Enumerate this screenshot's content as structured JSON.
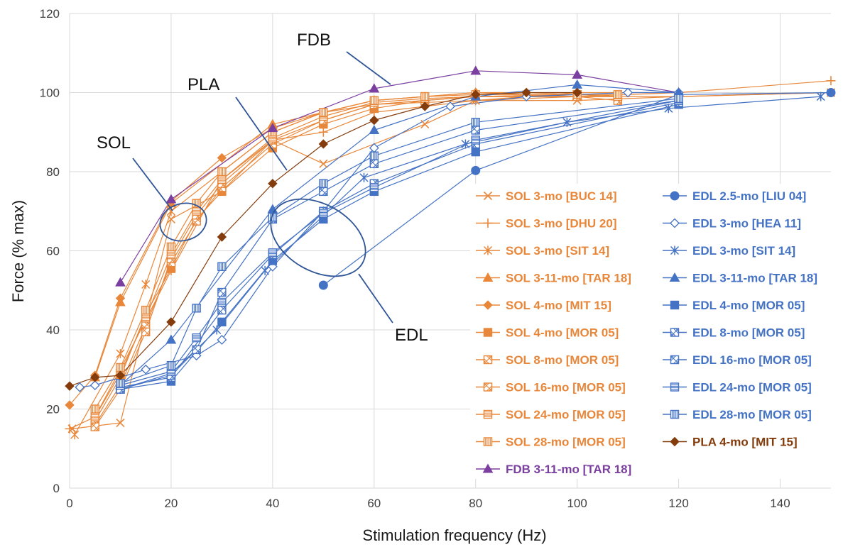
{
  "chart_data": {
    "type": "line",
    "xlabel": "Stimulation frequency (Hz)",
    "ylabel": "Force (% max)",
    "xlim": [
      0,
      150
    ],
    "ylim": [
      0,
      120
    ],
    "xticks": [
      0,
      20,
      40,
      60,
      80,
      100,
      120,
      140
    ],
    "yticks": [
      0,
      20,
      40,
      60,
      80,
      100,
      120
    ],
    "grid": true,
    "legend_position": "bottom-right",
    "annotations": [
      {
        "text": "FDB"
      },
      {
        "text": "PLA"
      },
      {
        "text": "SOL"
      },
      {
        "text": "EDL"
      }
    ],
    "series": [
      {
        "name": "SOL 3-mo [BUC 14]",
        "color": "#E8873A",
        "marker": "x",
        "points": [
          [
            0.5,
            15
          ],
          [
            10,
            16.5
          ],
          [
            20,
            68
          ],
          [
            30,
            75
          ],
          [
            40,
            88
          ],
          [
            50,
            82
          ],
          [
            70,
            92
          ],
          [
            80,
            98
          ],
          [
            100,
            98
          ],
          [
            120,
            99
          ],
          [
            150,
            100
          ]
        ]
      },
      {
        "name": "SOL 3-mo [DHU 20]",
        "color": "#E8873A",
        "marker": "plus",
        "points": [
          [
            0,
            15
          ],
          [
            5,
            18
          ],
          [
            10,
            30
          ],
          [
            20,
            55
          ],
          [
            30,
            78
          ],
          [
            40,
            88
          ],
          [
            50,
            90
          ],
          [
            60,
            95
          ],
          [
            80,
            98
          ],
          [
            100,
            100
          ],
          [
            120,
            100
          ],
          [
            150,
            103
          ]
        ]
      },
      {
        "name": "SOL 3-mo [SIT 14]",
        "color": "#E8873A",
        "marker": "star",
        "points": [
          [
            1,
            13.5
          ],
          [
            10,
            34
          ],
          [
            15,
            51.5
          ],
          [
            20,
            70
          ],
          [
            30,
            80
          ],
          [
            40,
            90
          ],
          [
            50,
            95
          ],
          [
            60,
            97
          ],
          [
            80,
            98
          ],
          [
            100,
            99
          ],
          [
            120,
            99
          ],
          [
            150,
            100
          ]
        ]
      },
      {
        "name": "SOL 3-11-mo [TAR 18]",
        "color": "#E8873A",
        "marker": "triangle-filled",
        "points": [
          [
            5,
            28
          ],
          [
            10,
            47
          ],
          [
            20,
            72
          ],
          [
            40,
            92
          ],
          [
            60,
            98
          ],
          [
            80,
            100
          ],
          [
            100,
            99
          ],
          [
            120,
            100
          ]
        ]
      },
      {
        "name": "SOL 4-mo [MIT 15]",
        "color": "#E8873A",
        "marker": "diamond-filled",
        "points": [
          [
            0,
            21
          ],
          [
            5,
            28.5
          ],
          [
            10,
            48
          ],
          [
            20,
            72.5
          ],
          [
            30,
            83.5
          ],
          [
            40,
            91
          ],
          [
            50,
            95
          ],
          [
            60,
            98
          ],
          [
            70,
            99
          ],
          [
            80,
            100
          ],
          [
            90,
            100
          ],
          [
            100,
            99.5
          ]
        ]
      },
      {
        "name": "SOL 4-mo [MOR 05]",
        "color": "#E8873A",
        "marker": "square-filled",
        "points": [
          [
            5,
            17
          ],
          [
            10,
            28
          ],
          [
            15,
            44
          ],
          [
            20,
            55.5
          ],
          [
            25,
            68
          ],
          [
            30,
            75
          ],
          [
            40,
            86
          ],
          [
            50,
            92
          ],
          [
            60,
            96
          ],
          [
            70,
            98
          ],
          [
            80,
            99
          ],
          [
            100,
            99.5
          ],
          [
            108,
            99
          ]
        ]
      },
      {
        "name": "SOL 8-mo [MOR 05]",
        "color": "#E8873A",
        "marker": "square-hatch-diag",
        "points": [
          [
            5,
            16
          ],
          [
            10,
            26
          ],
          [
            15,
            41
          ],
          [
            20,
            57
          ],
          [
            25,
            67.5
          ],
          [
            30,
            76
          ],
          [
            40,
            87
          ],
          [
            50,
            93
          ],
          [
            60,
            97
          ],
          [
            70,
            98
          ],
          [
            80,
            99
          ],
          [
            100,
            99
          ],
          [
            108,
            99
          ]
        ]
      },
      {
        "name": "SOL 16-mo [MOR 05]",
        "color": "#E8873A",
        "marker": "square-hatch-anti",
        "points": [
          [
            5,
            15.5
          ],
          [
            10,
            25
          ],
          [
            15,
            39.5
          ],
          [
            20,
            58
          ],
          [
            25,
            69
          ],
          [
            30,
            77
          ],
          [
            40,
            88
          ],
          [
            50,
            93
          ],
          [
            60,
            97
          ],
          [
            70,
            98
          ],
          [
            80,
            99
          ],
          [
            100,
            99
          ],
          [
            108,
            98
          ]
        ]
      },
      {
        "name": "SOL 24-mo [MOR 05]",
        "color": "#E8873A",
        "marker": "square-hatch-h",
        "points": [
          [
            5,
            18
          ],
          [
            10,
            29
          ],
          [
            15,
            43
          ],
          [
            20,
            59
          ],
          [
            25,
            70
          ],
          [
            30,
            78
          ],
          [
            40,
            88.5
          ],
          [
            50,
            94
          ],
          [
            60,
            97.5
          ],
          [
            70,
            98.5
          ],
          [
            80,
            99
          ],
          [
            100,
            99.5
          ],
          [
            108,
            99
          ]
        ]
      },
      {
        "name": "SOL 28-mo [MOR 05]",
        "color": "#E8873A",
        "marker": "square-hatch-v",
        "points": [
          [
            5,
            20
          ],
          [
            10,
            30.5
          ],
          [
            15,
            45
          ],
          [
            20,
            61
          ],
          [
            25,
            72
          ],
          [
            30,
            80
          ],
          [
            40,
            90
          ],
          [
            50,
            95
          ],
          [
            60,
            98
          ],
          [
            70,
            99
          ],
          [
            80,
            99.5
          ],
          [
            100,
            99.5
          ],
          [
            108,
            99.5
          ]
        ]
      },
      {
        "name": "FDB 3-11-mo [TAR 18]",
        "color": "#7B3FA0",
        "marker": "triangle-filled",
        "points": [
          [
            10,
            52
          ],
          [
            20,
            73
          ],
          [
            40,
            91
          ],
          [
            60,
            101
          ],
          [
            80,
            105.5
          ],
          [
            100,
            104.5
          ],
          [
            120,
            100
          ]
        ]
      },
      {
        "name": "EDL 2.5-mo [LIU 04]",
        "color": "#4472C4",
        "marker": "circle-filled",
        "points": [
          [
            50,
            51.3
          ],
          [
            80,
            80.3
          ],
          [
            120,
            99.5
          ],
          [
            150,
            100
          ]
        ]
      },
      {
        "name": "EDL 3-mo [HEA 11]",
        "color": "#4472C4",
        "marker": "diamond-open",
        "points": [
          [
            2,
            25.5
          ],
          [
            5,
            26
          ],
          [
            15,
            30
          ],
          [
            25,
            33.5
          ],
          [
            30,
            37.5
          ],
          [
            40,
            56
          ],
          [
            50,
            70
          ],
          [
            60,
            86
          ],
          [
            75,
            96.5
          ],
          [
            90,
            99
          ],
          [
            110,
            100
          ],
          [
            120,
            100
          ]
        ]
      },
      {
        "name": "EDL 3-mo [SIT 14]",
        "color": "#4472C4",
        "marker": "star",
        "points": [
          [
            10,
            25
          ],
          [
            20,
            29
          ],
          [
            29,
            40
          ],
          [
            38.5,
            55
          ],
          [
            58,
            78.5
          ],
          [
            78,
            87
          ],
          [
            98,
            92.5
          ],
          [
            118,
            96
          ],
          [
            148,
            99
          ]
        ]
      },
      {
        "name": "EDL 3-11-mo [TAR 18]",
        "color": "#4472C4",
        "marker": "triangle-filled",
        "points": [
          [
            10,
            26
          ],
          [
            20,
            37.5
          ],
          [
            40,
            70.5
          ],
          [
            60,
            90.5
          ],
          [
            80,
            99
          ],
          [
            100,
            102
          ],
          [
            120,
            100
          ]
        ]
      },
      {
        "name": "EDL 4-mo [MOR 05]",
        "color": "#4472C4",
        "marker": "square-filled",
        "points": [
          [
            10,
            25
          ],
          [
            20,
            27
          ],
          [
            30,
            42
          ],
          [
            40,
            57.5
          ],
          [
            50,
            68
          ],
          [
            60,
            75
          ],
          [
            80,
            85
          ],
          [
            120,
            97
          ]
        ]
      },
      {
        "name": "EDL 8-mo [MOR 05]",
        "color": "#4472C4",
        "marker": "square-hatch-diag",
        "points": [
          [
            10,
            25.5
          ],
          [
            20,
            28
          ],
          [
            30,
            45
          ],
          [
            40,
            59
          ],
          [
            50,
            70
          ],
          [
            60,
            77
          ],
          [
            80,
            87
          ],
          [
            120,
            97.5
          ]
        ]
      },
      {
        "name": "EDL 16-mo [MOR 05]",
        "color": "#4472C4",
        "marker": "square-hatch-anti",
        "points": [
          [
            10,
            25
          ],
          [
            20,
            28.5
          ],
          [
            25,
            35
          ],
          [
            30,
            49.5
          ],
          [
            40,
            68
          ],
          [
            50,
            75
          ],
          [
            60,
            82
          ],
          [
            80,
            90.5
          ],
          [
            120,
            98
          ]
        ]
      },
      {
        "name": "EDL 24-mo [MOR 05]",
        "color": "#4472C4",
        "marker": "square-hatch-h",
        "points": [
          [
            10,
            26
          ],
          [
            20,
            29.5
          ],
          [
            25,
            38
          ],
          [
            30,
            47
          ],
          [
            40,
            59.5
          ],
          [
            50,
            69.5
          ],
          [
            60,
            76
          ],
          [
            80,
            88
          ],
          [
            120,
            98
          ]
        ]
      },
      {
        "name": "EDL 28-mo [MOR 05]",
        "color": "#4472C4",
        "marker": "square-hatch-v",
        "points": [
          [
            10,
            26.5
          ],
          [
            20,
            31
          ],
          [
            25,
            45.5
          ],
          [
            30,
            56
          ],
          [
            40,
            68.5
          ],
          [
            50,
            77
          ],
          [
            60,
            84
          ],
          [
            80,
            92.5
          ],
          [
            120,
            98.5
          ]
        ]
      },
      {
        "name": "PLA 4-mo [MIT 15]",
        "color": "#843C0C",
        "marker": "diamond-filled",
        "points": [
          [
            0,
            25.8
          ],
          [
            5,
            28
          ],
          [
            10,
            28.5
          ],
          [
            20,
            42
          ],
          [
            30,
            63.5
          ],
          [
            40,
            77
          ],
          [
            50,
            87
          ],
          [
            60,
            93
          ],
          [
            70,
            96.5
          ],
          [
            80,
            99.5
          ],
          [
            90,
            100
          ],
          [
            100,
            100
          ]
        ]
      }
    ]
  }
}
